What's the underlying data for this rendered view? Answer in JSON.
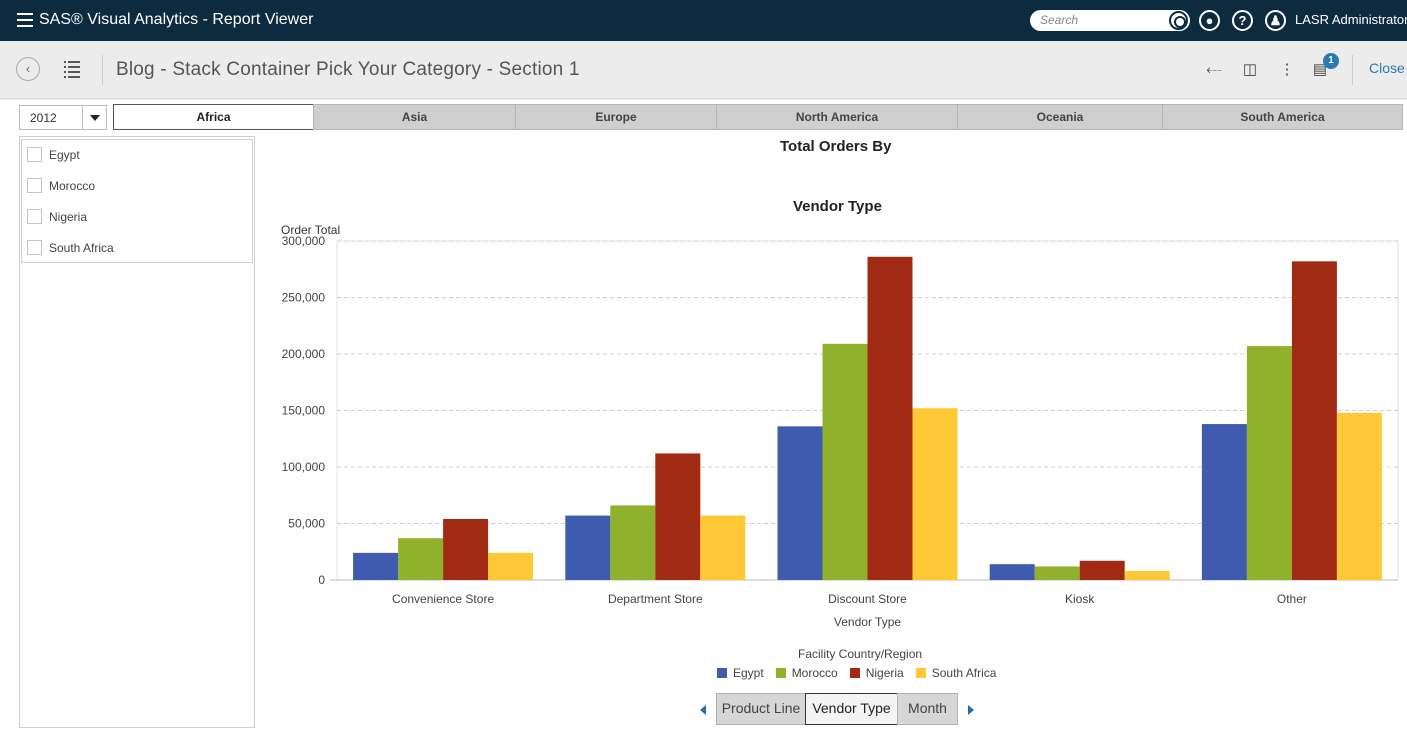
{
  "app": {
    "title": "SAS® Visual Analytics - Report Viewer",
    "search_placeholder": "Search",
    "user": "LASR Administrator"
  },
  "report": {
    "title": "Blog - Stack Container Pick Your Category - Section 1",
    "notification_count": "1",
    "close_label": "Close"
  },
  "filters": {
    "year": "2012",
    "tabs": [
      "Africa",
      "Asia",
      "Europe",
      "North America",
      "Oceania",
      "South America"
    ],
    "active_tab": "Africa",
    "countries": [
      "Egypt",
      "Morocco",
      "Nigeria",
      "South Africa"
    ]
  },
  "chart_data": {
    "type": "bar",
    "title_line1": "Total Orders By",
    "title_line2": "Vendor Type",
    "xlabel": "Vendor Type",
    "ylabel": "Order Total",
    "ylim": [
      0,
      300000
    ],
    "yticks": [
      "0",
      "50,000",
      "100,000",
      "150,000",
      "200,000",
      "250,000",
      "300,000"
    ],
    "categories": [
      "Convenience Store",
      "Department Store",
      "Discount Store",
      "Kiosk",
      "Other"
    ],
    "legend_title": "Facility Country/Region",
    "series": [
      {
        "name": "Egypt",
        "color": "#3f5bb0",
        "values": [
          24000,
          57000,
          136000,
          14000,
          138000
        ]
      },
      {
        "name": "Morocco",
        "color": "#8fb12b",
        "values": [
          37000,
          66000,
          209000,
          12000,
          207000
        ]
      },
      {
        "name": "Nigeria",
        "color": "#a12a14",
        "values": [
          54000,
          112000,
          286000,
          17000,
          282000
        ]
      },
      {
        "name": "South Africa",
        "color": "#ffc836",
        "values": [
          24000,
          57000,
          152000,
          8000,
          148000
        ]
      }
    ],
    "grid": true
  },
  "hierarchy": {
    "levels": [
      "Product Line",
      "Vendor Type",
      "Month"
    ],
    "active": "Vendor Type"
  }
}
